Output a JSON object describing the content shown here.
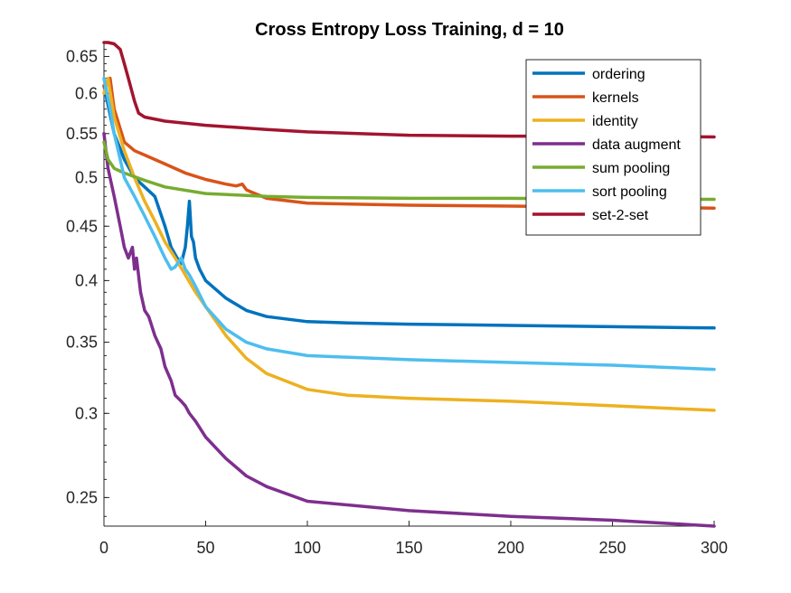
{
  "chart_data": {
    "type": "line",
    "title": "Cross Entropy Loss Training, d = 10",
    "xlabel": "",
    "ylabel": "",
    "xlim": [
      0,
      300
    ],
    "ylim": [
      0.235,
      0.67
    ],
    "yscale": "log",
    "xticks": [
      0,
      50,
      100,
      150,
      200,
      250,
      300
    ],
    "yticks": [
      0.25,
      0.3,
      0.35,
      0.4,
      0.45,
      0.5,
      0.55,
      0.6,
      0.65
    ],
    "ytick_labels": [
      "0.25",
      "0.3",
      "0.35",
      "0.4",
      "0.45",
      "0.5",
      "0.55",
      "0.6",
      "0.65"
    ],
    "legend_position": "top-right",
    "series": [
      {
        "name": "ordering",
        "color": "#0072BD",
        "x": [
          0,
          5,
          10,
          15,
          20,
          25,
          30,
          33,
          36,
          38,
          40,
          41,
          42,
          43,
          44,
          45,
          47,
          50,
          60,
          70,
          80,
          100,
          120,
          150,
          200,
          250,
          300
        ],
        "y": [
          0.61,
          0.55,
          0.52,
          0.5,
          0.49,
          0.48,
          0.45,
          0.43,
          0.42,
          0.415,
          0.43,
          0.45,
          0.475,
          0.44,
          0.435,
          0.42,
          0.41,
          0.4,
          0.385,
          0.375,
          0.37,
          0.366,
          0.365,
          0.364,
          0.363,
          0.362,
          0.361
        ]
      },
      {
        "name": "kernels",
        "color": "#D95319",
        "x": [
          0,
          3,
          5,
          10,
          15,
          20,
          30,
          40,
          50,
          60,
          65,
          68,
          70,
          72,
          80,
          100,
          150,
          200,
          250,
          300
        ],
        "y": [
          0.61,
          0.62,
          0.58,
          0.54,
          0.53,
          0.525,
          0.515,
          0.505,
          0.498,
          0.493,
          0.491,
          0.493,
          0.487,
          0.485,
          0.478,
          0.473,
          0.471,
          0.47,
          0.469,
          0.468
        ]
      },
      {
        "name": "identity",
        "color": "#EDB120",
        "x": [
          0,
          2,
          5,
          10,
          15,
          20,
          25,
          30,
          35,
          40,
          45,
          50,
          60,
          70,
          80,
          100,
          120,
          150,
          200,
          250,
          300
        ],
        "y": [
          0.6,
          0.62,
          0.57,
          0.53,
          0.5,
          0.475,
          0.455,
          0.435,
          0.42,
          0.405,
          0.39,
          0.378,
          0.355,
          0.338,
          0.327,
          0.316,
          0.312,
          0.31,
          0.308,
          0.305,
          0.302
        ]
      },
      {
        "name": "data augment",
        "color": "#7E2F8E",
        "x": [
          0,
          2,
          5,
          8,
          10,
          12,
          14,
          15,
          16,
          18,
          20,
          22,
          23,
          25,
          28,
          30,
          33,
          35,
          38,
          40,
          42,
          45,
          50,
          60,
          70,
          80,
          100,
          150,
          200,
          250,
          300
        ],
        "y": [
          0.55,
          0.51,
          0.48,
          0.45,
          0.43,
          0.42,
          0.43,
          0.41,
          0.42,
          0.39,
          0.375,
          0.37,
          0.365,
          0.355,
          0.345,
          0.332,
          0.322,
          0.312,
          0.308,
          0.305,
          0.3,
          0.295,
          0.285,
          0.272,
          0.262,
          0.256,
          0.248,
          0.243,
          0.24,
          0.238,
          0.235
        ]
      },
      {
        "name": "sum pooling",
        "color": "#77AC30",
        "x": [
          0,
          2,
          5,
          10,
          20,
          30,
          50,
          80,
          100,
          150,
          200,
          250,
          300
        ],
        "y": [
          0.54,
          0.52,
          0.51,
          0.505,
          0.497,
          0.49,
          0.483,
          0.48,
          0.479,
          0.478,
          0.478,
          0.477,
          0.477
        ]
      },
      {
        "name": "sort pooling",
        "color": "#4DBEEE",
        "x": [
          0,
          3,
          5,
          8,
          10,
          15,
          20,
          25,
          30,
          33,
          35,
          38,
          40,
          42,
          45,
          50,
          60,
          70,
          80,
          100,
          150,
          200,
          250,
          300
        ],
        "y": [
          0.62,
          0.58,
          0.55,
          0.52,
          0.5,
          0.48,
          0.46,
          0.44,
          0.42,
          0.41,
          0.412,
          0.42,
          0.41,
          0.405,
          0.395,
          0.378,
          0.36,
          0.35,
          0.345,
          0.34,
          0.337,
          0.335,
          0.333,
          0.33
        ]
      },
      {
        "name": "set-2-set",
        "color": "#A2142F",
        "x": [
          0,
          2,
          5,
          8,
          10,
          12,
          15,
          17,
          20,
          30,
          50,
          80,
          100,
          150,
          200,
          250,
          300
        ],
        "y": [
          0.67,
          0.67,
          0.668,
          0.66,
          0.64,
          0.62,
          0.59,
          0.575,
          0.57,
          0.565,
          0.56,
          0.555,
          0.552,
          0.548,
          0.547,
          0.547,
          0.546
        ]
      }
    ]
  }
}
